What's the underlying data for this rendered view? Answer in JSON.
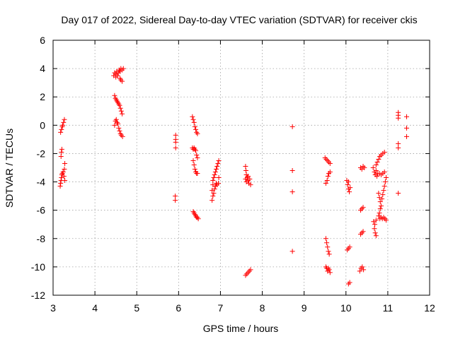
{
  "chart_data": {
    "type": "scatter",
    "title": "Day 017 of 2022, Sidereal Day-to-day VTEC variation (SDTVAR) for receiver ckis",
    "xlabel": "GPS time / hours",
    "ylabel": "SDTVAR / TECUs",
    "xlim": [
      3,
      12
    ],
    "ylim": [
      -12,
      6
    ],
    "xticks": [
      3,
      4,
      5,
      6,
      7,
      8,
      9,
      10,
      11,
      12
    ],
    "yticks": [
      6,
      4,
      2,
      0,
      -2,
      -4,
      -6,
      -8,
      -10,
      -12
    ],
    "grid": true,
    "marker": "+",
    "color": "#ff0000",
    "series": [
      {
        "name": "SDTVAR",
        "points": [
          [
            3.17,
            -4.3
          ],
          [
            3.18,
            -4.1
          ],
          [
            3.19,
            -3.9
          ],
          [
            3.2,
            -3.7
          ],
          [
            3.21,
            -3.5
          ],
          [
            3.22,
            -3.4
          ],
          [
            3.24,
            -3.3
          ],
          [
            3.26,
            -3.6
          ],
          [
            3.28,
            -3.9
          ],
          [
            3.27,
            -3.1
          ],
          [
            3.28,
            -2.7
          ],
          [
            3.19,
            -2.2
          ],
          [
            3.2,
            -1.9
          ],
          [
            3.21,
            -1.7
          ],
          [
            3.18,
            -0.5
          ],
          [
            3.2,
            -0.3
          ],
          [
            3.22,
            -0.1
          ],
          [
            3.23,
            0.0
          ],
          [
            3.25,
            0.2
          ],
          [
            3.27,
            0.4
          ],
          [
            4.45,
            3.5
          ],
          [
            4.47,
            3.7
          ],
          [
            4.5,
            3.6
          ],
          [
            4.52,
            3.8
          ],
          [
            4.54,
            3.5
          ],
          [
            4.56,
            3.7
          ],
          [
            4.58,
            3.9
          ],
          [
            4.6,
            3.8
          ],
          [
            4.62,
            4.0
          ],
          [
            4.65,
            3.9
          ],
          [
            4.68,
            4.0
          ],
          [
            4.6,
            3.3
          ],
          [
            4.62,
            3.2
          ],
          [
            4.65,
            3.1
          ],
          [
            4.5,
            3.4
          ],
          [
            4.47,
            2.1
          ],
          [
            4.49,
            1.9
          ],
          [
            4.51,
            1.8
          ],
          [
            4.53,
            1.7
          ],
          [
            4.55,
            1.6
          ],
          [
            4.57,
            1.5
          ],
          [
            4.59,
            1.4
          ],
          [
            4.61,
            1.2
          ],
          [
            4.63,
            1.0
          ],
          [
            4.65,
            0.8
          ],
          [
            4.47,
            0.0
          ],
          [
            4.49,
            0.3
          ],
          [
            4.51,
            0.4
          ],
          [
            4.53,
            0.2
          ],
          [
            4.55,
            0.1
          ],
          [
            4.57,
            -0.2
          ],
          [
            4.59,
            -0.4
          ],
          [
            4.61,
            -0.6
          ],
          [
            4.63,
            -0.7
          ],
          [
            4.66,
            -0.8
          ],
          [
            5.93,
            -0.7
          ],
          [
            5.93,
            -1.0
          ],
          [
            5.93,
            -1.2
          ],
          [
            5.93,
            -1.6
          ],
          [
            5.92,
            -5.0
          ],
          [
            5.92,
            -5.3
          ],
          [
            6.33,
            0.6
          ],
          [
            6.35,
            0.4
          ],
          [
            6.37,
            0.2
          ],
          [
            6.39,
            -0.1
          ],
          [
            6.41,
            -0.3
          ],
          [
            6.43,
            -0.5
          ],
          [
            6.45,
            -0.6
          ],
          [
            6.33,
            -1.6
          ],
          [
            6.35,
            -1.7
          ],
          [
            6.37,
            -1.6
          ],
          [
            6.39,
            -1.7
          ],
          [
            6.41,
            -1.8
          ],
          [
            6.43,
            -2.1
          ],
          [
            6.45,
            -2.3
          ],
          [
            6.35,
            -2.5
          ],
          [
            6.37,
            -2.8
          ],
          [
            6.39,
            -3.1
          ],
          [
            6.41,
            -3.3
          ],
          [
            6.43,
            -3.4
          ],
          [
            6.45,
            -3.4
          ],
          [
            6.35,
            -6.1
          ],
          [
            6.37,
            -6.2
          ],
          [
            6.39,
            -6.3
          ],
          [
            6.41,
            -6.4
          ],
          [
            6.43,
            -6.5
          ],
          [
            6.45,
            -6.5
          ],
          [
            6.47,
            -6.6
          ],
          [
            6.8,
            -5.3
          ],
          [
            6.82,
            -5.0
          ],
          [
            6.84,
            -4.8
          ],
          [
            6.86,
            -4.5
          ],
          [
            6.88,
            -4.3
          ],
          [
            6.9,
            -4.1
          ],
          [
            6.92,
            -4.2
          ],
          [
            6.8,
            -4.6
          ],
          [
            6.82,
            -4.2
          ],
          [
            6.82,
            -3.9
          ],
          [
            6.84,
            -3.7
          ],
          [
            6.86,
            -3.5
          ],
          [
            6.88,
            -3.3
          ],
          [
            6.9,
            -3.1
          ],
          [
            6.92,
            -2.9
          ],
          [
            6.94,
            -2.7
          ],
          [
            6.96,
            -2.5
          ],
          [
            6.96,
            -3.7
          ],
          [
            6.95,
            -4.1
          ],
          [
            7.6,
            -2.9
          ],
          [
            7.61,
            -3.2
          ],
          [
            7.62,
            -3.5
          ],
          [
            7.6,
            -3.8
          ],
          [
            7.62,
            -4.0
          ],
          [
            7.64,
            -3.7
          ],
          [
            7.66,
            -3.9
          ],
          [
            7.68,
            -4.1
          ],
          [
            7.7,
            -3.8
          ],
          [
            7.72,
            -4.2
          ],
          [
            7.66,
            -3.6
          ],
          [
            7.6,
            -10.6
          ],
          [
            7.63,
            -10.5
          ],
          [
            7.66,
            -10.4
          ],
          [
            7.69,
            -10.3
          ],
          [
            7.72,
            -10.2
          ],
          [
            8.72,
            -0.1
          ],
          [
            8.72,
            -3.2
          ],
          [
            8.72,
            -4.7
          ],
          [
            8.72,
            -8.9
          ],
          [
            9.5,
            -2.3
          ],
          [
            9.53,
            -2.4
          ],
          [
            9.56,
            -2.5
          ],
          [
            9.59,
            -2.6
          ],
          [
            9.62,
            -2.7
          ],
          [
            9.52,
            -4.1
          ],
          [
            9.55,
            -3.9
          ],
          [
            9.57,
            -3.6
          ],
          [
            9.59,
            -3.4
          ],
          [
            9.62,
            -3.3
          ],
          [
            9.52,
            -8.0
          ],
          [
            9.54,
            -8.3
          ],
          [
            9.56,
            -8.6
          ],
          [
            9.58,
            -8.9
          ],
          [
            9.6,
            -9.1
          ],
          [
            9.52,
            -10.0
          ],
          [
            9.54,
            -10.1
          ],
          [
            9.56,
            -10.3
          ],
          [
            9.58,
            -10.1
          ],
          [
            9.6,
            -10.2
          ],
          [
            9.62,
            -10.4
          ],
          [
            10.02,
            -3.9
          ],
          [
            10.04,
            -4.2
          ],
          [
            10.06,
            -4.5
          ],
          [
            10.08,
            -4.7
          ],
          [
            10.06,
            -4.0
          ],
          [
            10.1,
            -4.4
          ],
          [
            10.03,
            -8.8
          ],
          [
            10.06,
            -8.7
          ],
          [
            10.09,
            -8.6
          ],
          [
            10.06,
            -11.2
          ],
          [
            10.09,
            -11.1
          ],
          [
            10.35,
            -3.0
          ],
          [
            10.38,
            -3.1
          ],
          [
            10.41,
            -2.9
          ],
          [
            10.44,
            -3.0
          ],
          [
            10.35,
            -6.0
          ],
          [
            10.38,
            -5.9
          ],
          [
            10.41,
            -5.8
          ],
          [
            10.35,
            -7.7
          ],
          [
            10.38,
            -7.6
          ],
          [
            10.41,
            -7.5
          ],
          [
            10.33,
            -10.3
          ],
          [
            10.36,
            -10.1
          ],
          [
            10.39,
            -10.0
          ],
          [
            10.42,
            -10.2
          ],
          [
            10.65,
            -3.0
          ],
          [
            10.68,
            -3.3
          ],
          [
            10.7,
            -3.5
          ],
          [
            10.72,
            -3.2
          ],
          [
            10.74,
            -3.6
          ],
          [
            10.76,
            -3.4
          ],
          [
            10.72,
            -2.8
          ],
          [
            10.75,
            -2.6
          ],
          [
            10.78,
            -2.4
          ],
          [
            10.81,
            -2.2
          ],
          [
            10.84,
            -2.1
          ],
          [
            10.88,
            -2.0
          ],
          [
            10.92,
            -1.9
          ],
          [
            10.8,
            -3.4
          ],
          [
            10.84,
            -3.5
          ],
          [
            10.88,
            -3.4
          ],
          [
            10.92,
            -3.3
          ],
          [
            10.78,
            -4.8
          ],
          [
            10.8,
            -5.1
          ],
          [
            10.82,
            -5.4
          ],
          [
            10.84,
            -5.7
          ],
          [
            10.86,
            -5.2
          ],
          [
            10.88,
            -4.9
          ],
          [
            10.9,
            -4.6
          ],
          [
            10.92,
            -4.3
          ],
          [
            10.94,
            -4.0
          ],
          [
            10.96,
            -3.7
          ],
          [
            10.78,
            -6.4
          ],
          [
            10.81,
            -6.6
          ],
          [
            10.84,
            -6.5
          ],
          [
            10.87,
            -6.6
          ],
          [
            10.9,
            -6.5
          ],
          [
            10.93,
            -6.6
          ],
          [
            10.96,
            -6.7
          ],
          [
            10.8,
            -6.2
          ],
          [
            10.82,
            -5.9
          ],
          [
            10.66,
            -6.8
          ],
          [
            10.69,
            -7.0
          ],
          [
            10.72,
            -6.7
          ],
          [
            10.68,
            -7.3
          ],
          [
            10.7,
            -7.6
          ],
          [
            10.72,
            -7.8
          ],
          [
            11.25,
            0.9
          ],
          [
            11.25,
            0.7
          ],
          [
            11.25,
            0.5
          ],
          [
            11.25,
            -1.3
          ],
          [
            11.25,
            -1.6
          ],
          [
            11.25,
            -4.8
          ],
          [
            11.45,
            0.6
          ],
          [
            11.45,
            -0.2
          ],
          [
            11.45,
            -0.8
          ]
        ]
      }
    ]
  }
}
